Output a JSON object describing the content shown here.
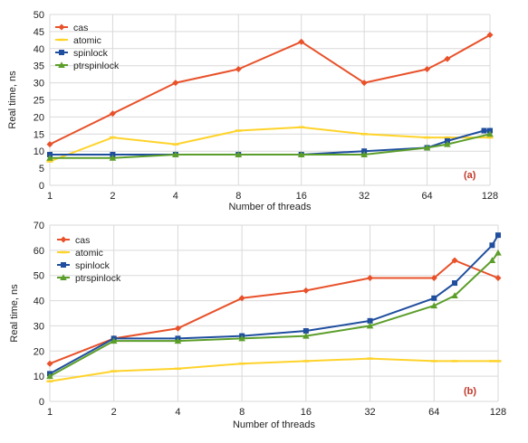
{
  "chart_data": [
    {
      "type": "line",
      "annotation": "(a)",
      "xlabel": "Number of threads",
      "ylabel": "Real time, ns",
      "ylim": [
        0,
        50
      ],
      "ystep": 5,
      "xscale": "log2",
      "xticks": [
        "1",
        "2",
        "4",
        "8",
        "16",
        "32",
        "64",
        "128"
      ],
      "grid": true,
      "legend_position": "top-left",
      "series": [
        {
          "name": "cas",
          "color": "#e8512a",
          "marker": "diamond",
          "x": [
            1,
            2,
            4,
            8,
            16,
            32,
            64,
            80,
            128
          ],
          "values": [
            12,
            21,
            30,
            34,
            42,
            30,
            34,
            37,
            44
          ]
        },
        {
          "name": "atomic",
          "color": "#ffd32a",
          "marker": "dash",
          "x": [
            1,
            2,
            4,
            8,
            16,
            32,
            64,
            80,
            128
          ],
          "values": [
            7,
            14,
            12,
            16,
            17,
            15,
            14,
            14,
            14
          ]
        },
        {
          "name": "spinlock",
          "color": "#1f4e9e",
          "marker": "square",
          "x": [
            1,
            2,
            4,
            8,
            16,
            32,
            64,
            80,
            120,
            128
          ],
          "values": [
            9,
            9,
            9,
            9,
            9,
            10,
            11,
            13,
            16,
            16
          ]
        },
        {
          "name": "ptrspinlock",
          "color": "#5c9e2a",
          "marker": "triangle",
          "x": [
            1,
            2,
            4,
            8,
            16,
            32,
            64,
            80,
            128
          ],
          "values": [
            8,
            8,
            9,
            9,
            9,
            9,
            11,
            12,
            15
          ]
        }
      ]
    },
    {
      "type": "line",
      "annotation": "(b)",
      "xlabel": "Number of threads",
      "ylabel": "Real time, ns",
      "ylim": [
        0,
        70
      ],
      "ystep": 10,
      "xscale": "log2",
      "xticks": [
        "1",
        "2",
        "4",
        "8",
        "16",
        "32",
        "64",
        "128"
      ],
      "grid": true,
      "legend_position": "top-left",
      "series": [
        {
          "name": "cas",
          "color": "#e8512a",
          "marker": "diamond",
          "x": [
            1,
            2,
            4,
            8,
            16,
            32,
            64,
            80,
            128
          ],
          "values": [
            15,
            25,
            29,
            41,
            44,
            49,
            49,
            56,
            49
          ]
        },
        {
          "name": "atomic",
          "color": "#ffd32a",
          "marker": "dash",
          "x": [
            1,
            2,
            4,
            8,
            16,
            32,
            64,
            80,
            120,
            128
          ],
          "values": [
            8,
            12,
            13,
            15,
            16,
            17,
            16,
            16,
            16,
            16
          ]
        },
        {
          "name": "spinlock",
          "color": "#1f4e9e",
          "marker": "square",
          "x": [
            1,
            2,
            4,
            8,
            16,
            32,
            64,
            80,
            120,
            128
          ],
          "values": [
            11,
            25,
            25,
            26,
            28,
            32,
            41,
            47,
            62,
            66
          ]
        },
        {
          "name": "ptrspinlock",
          "color": "#5c9e2a",
          "marker": "triangle",
          "x": [
            1,
            2,
            4,
            8,
            16,
            32,
            64,
            80,
            120,
            128
          ],
          "values": [
            10,
            24,
            24,
            25,
            26,
            30,
            38,
            42,
            56,
            59
          ]
        }
      ]
    }
  ]
}
